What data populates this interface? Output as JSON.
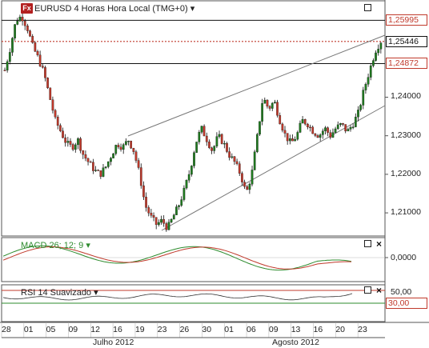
{
  "header": {
    "badge": "Fx",
    "title": "EURUSD 4 Horas Hora Local (TMG+0)",
    "dropdown_glyph": "▾"
  },
  "price_axis": {
    "ticks": [
      "1,24000",
      "1,23000",
      "1,22000",
      "1,21000"
    ],
    "tags": [
      {
        "label": "1,25995",
        "color": "#c0392b"
      },
      {
        "label": "1,25446",
        "color": "#111111"
      },
      {
        "label": "1,24872",
        "color": "#c0392b"
      }
    ]
  },
  "macd": {
    "label": "MACD 26; 12; 9",
    "dropdown_glyph": "▾",
    "axis_tick": "0,0000",
    "color": "#2e8b2e"
  },
  "rsi": {
    "label": "RSI 14 Suavizado",
    "dropdown_glyph": "▾",
    "axis_top": "50,00",
    "tag": "30,00",
    "tag_color": "#c0392b"
  },
  "date_axis": {
    "days": [
      "28",
      "01",
      "05",
      "09",
      "12",
      "16",
      "19",
      "23",
      "26",
      "30",
      "01",
      "06",
      "09",
      "13",
      "16",
      "20",
      "23"
    ],
    "months": [
      "Julho 2012",
      "Agosto 2012"
    ]
  },
  "icons": {
    "maximize": "maximize-icon",
    "close": "close-icon",
    "dropdown": "chevron-down-icon"
  },
  "colors": {
    "bull": "#1f7a1f",
    "bear": "#c0392b",
    "wick": "#111111",
    "resistance_line": "#c0392b"
  },
  "chart_data": {
    "type": "candlestick",
    "title": "EURUSD 4 Horas Hora Local (TMG+0)",
    "ylim": [
      1.204,
      1.265
    ],
    "horizontal_levels": [
      1.25995,
      1.25446,
      1.24872
    ],
    "price_path": [
      1.247,
      1.253,
      1.26,
      1.261,
      1.258,
      1.253,
      1.25,
      1.246,
      1.24,
      1.234,
      1.231,
      1.228,
      1.227,
      1.229,
      1.225,
      1.223,
      1.221,
      1.22,
      1.222,
      1.225,
      1.228,
      1.227,
      1.229,
      1.226,
      1.22,
      1.212,
      1.209,
      1.207,
      1.208,
      1.206,
      1.209,
      1.212,
      1.216,
      1.221,
      1.228,
      1.232,
      1.229,
      1.226,
      1.23,
      1.228,
      1.225,
      1.223,
      1.22,
      1.215,
      1.22,
      1.23,
      1.24,
      1.237,
      1.239,
      1.234,
      1.23,
      1.228,
      1.23,
      1.234,
      1.233,
      1.231,
      1.23,
      1.232,
      1.23,
      1.232,
      1.233,
      1.231,
      1.233,
      1.236,
      1.242,
      1.247,
      1.252,
      1.2545
    ]
  }
}
